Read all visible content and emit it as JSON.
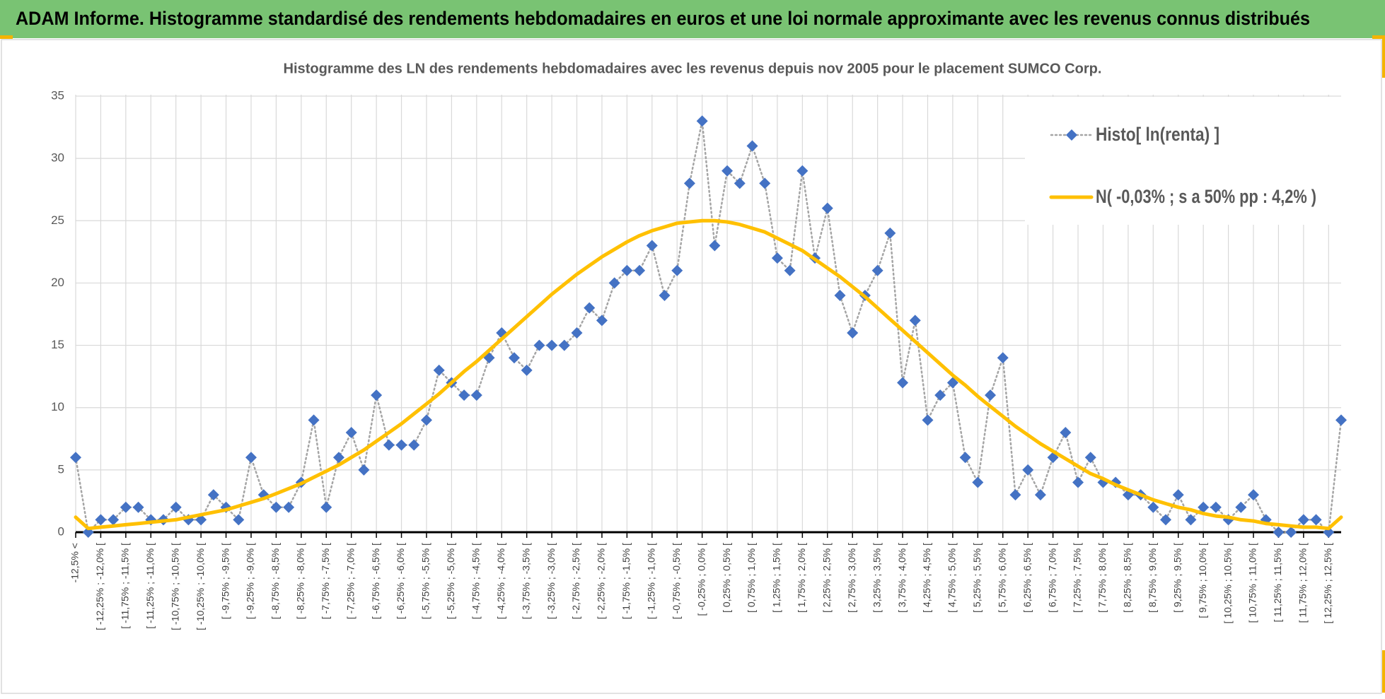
{
  "header": {
    "title": "ADAM Informe. Histogramme standardisé des rendements hebdomadaires en euros et une loi normale approximante avec les revenus connus distribués"
  },
  "chart_data": {
    "type": "line",
    "title": "Histogramme des LN des rendements hebdomadaires avec les revenus depuis nov 2005 pour le placement SUMCO Corp.",
    "categories": [
      "-12,5% <",
      null,
      "[ -12,25% ; -12,0% [",
      null,
      "[ -11,75% ; -11,5% [",
      null,
      "[ -11,25% ; -11,0% [",
      null,
      "[ -10,75% ; -10,5% [",
      null,
      "[ -10,25% ; -10,0% [",
      null,
      "[ -9,75% ; -9,5% [",
      null,
      "[ -9,25% ; -9,0% [",
      null,
      "[ -8,75% ; -8,5% [",
      null,
      "[ -8,25% ; -8,0% [",
      null,
      "[ -7,75% ; -7,5% [",
      null,
      "[ -7,25% ; -7,0% [",
      null,
      "[ -6,75% ; -6,5% [",
      null,
      "[ -6,25% ; -6,0% [",
      null,
      "[ -5,75% ; -5,5% [",
      null,
      "[ -5,25% ; -5,0% [",
      null,
      "[ -4,75% ; -4,5% [",
      null,
      "[ -4,25% ; -4,0% [",
      null,
      "[ -3,75% ; -3,5% [",
      null,
      "[ -3,25% ; -3,0% [",
      null,
      "[ -2,75% ; -2,5% [",
      null,
      "[ -2,25% ; -2,0% [",
      null,
      "[ -1,75% ; -1,5% [",
      null,
      "[ -1,25% ; -1,0% [",
      null,
      "[ -0,75% ; -0,5% [",
      null,
      "[ -0,25% ; 0,0% [",
      null,
      "[ 0,25% ; 0,5% [",
      null,
      "[ 0,75% ; 1,0% [",
      null,
      "[ 1,25% ; 1,5% [",
      null,
      "[ 1,75% ; 2,0% [",
      null,
      "[ 2,25% ; 2,5% [",
      null,
      "[ 2,75% ; 3,0% [",
      null,
      "[ 3,25% ; 3,5% [",
      null,
      "[ 3,75% ; 4,0% [",
      null,
      "[ 4,25% ; 4,5% [",
      null,
      "[ 4,75% ; 5,0% [",
      null,
      "[ 5,25% ; 5,5% [",
      null,
      "[ 5,75% ; 6,0% [",
      null,
      "[ 6,25% ; 6,5% [",
      null,
      "[ 6,75% ; 7,0% [",
      null,
      "[ 7,25% ; 7,5% [",
      null,
      "[ 7,75% ; 8,0% [",
      null,
      "[ 8,25% ; 8,5% [",
      null,
      "[ 8,75% ; 9,0% [",
      null,
      "[ 9,25% ; 9,5% [",
      null,
      "[ 9,75% ; 10,0% [",
      null,
      "[ 10,25% ; 10,5% [",
      null,
      "[ 10,75% ; 11,0% [",
      null,
      "[ 11,25% ; 11,5% [",
      null,
      "[ 11,75% ; 12,0% [",
      null,
      "[ 12,25% ; 12,5% [",
      null
    ],
    "series": [
      {
        "name": "Histo[ ln(renta) ]",
        "color": "#4472c4",
        "line_color": "#a5a5a5",
        "marker": "diamond",
        "dash": "dotted",
        "values": [
          6,
          0,
          1,
          1,
          2,
          2,
          1,
          1,
          2,
          1,
          1,
          3,
          2,
          1,
          6,
          3,
          2,
          2,
          4,
          9,
          2,
          6,
          8,
          5,
          11,
          7,
          7,
          7,
          9,
          13,
          12,
          11,
          11,
          14,
          16,
          14,
          13,
          15,
          15,
          15,
          16,
          18,
          17,
          20,
          21,
          21,
          23,
          19,
          21,
          28,
          33,
          23,
          29,
          28,
          31,
          28,
          22,
          21,
          29,
          22,
          26,
          19,
          16,
          19,
          21,
          24,
          12,
          17,
          9,
          11,
          12,
          6,
          4,
          11,
          14,
          3,
          5,
          3,
          6,
          8,
          4,
          6,
          4,
          4,
          3,
          3,
          2,
          1,
          3,
          1,
          2,
          2,
          1,
          2,
          3,
          1,
          0,
          0,
          1,
          1,
          0,
          9
        ]
      },
      {
        "name": "N( -0,03% ; s a 50% pp : 4,2% )",
        "color": "#ffc000",
        "marker": "none",
        "dash": "solid",
        "values": [
          1.2,
          0.3,
          0.4,
          0.5,
          0.6,
          0.7,
          0.8,
          0.9,
          1.0,
          1.2,
          1.4,
          1.6,
          1.8,
          2.1,
          2.4,
          2.7,
          3.1,
          3.5,
          3.9,
          4.4,
          4.9,
          5.4,
          6.0,
          6.6,
          7.3,
          8.0,
          8.7,
          9.5,
          10.3,
          11.1,
          12.0,
          12.9,
          13.7,
          14.6,
          15.5,
          16.4,
          17.3,
          18.2,
          19.1,
          19.9,
          20.7,
          21.4,
          22.1,
          22.7,
          23.3,
          23.8,
          24.2,
          24.5,
          24.8,
          24.9,
          25.0,
          25.0,
          24.9,
          24.7,
          24.4,
          24.1,
          23.6,
          23.1,
          22.6,
          21.9,
          21.2,
          20.5,
          19.7,
          18.9,
          18.0,
          17.1,
          16.2,
          15.3,
          14.4,
          13.5,
          12.6,
          11.8,
          10.9,
          10.1,
          9.3,
          8.5,
          7.8,
          7.1,
          6.5,
          5.9,
          5.3,
          4.7,
          4.3,
          3.8,
          3.4,
          3.0,
          2.6,
          2.3,
          2.0,
          1.8,
          1.5,
          1.3,
          1.2,
          1.0,
          0.9,
          0.7,
          0.6,
          0.5,
          0.4,
          0.4,
          0.3,
          1.2
        ]
      }
    ],
    "ylim": [
      0,
      35
    ],
    "yticks": [
      0,
      5,
      10,
      15,
      20,
      25,
      30,
      35
    ],
    "grid": true,
    "legend": "top-right"
  }
}
